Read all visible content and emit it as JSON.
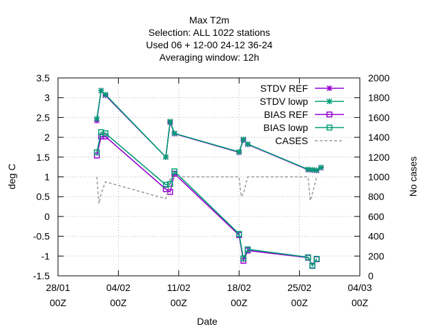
{
  "chart_data": {
    "type": "line",
    "title_lines": [
      "Max T2m",
      "Selection: ALL   1022 stations",
      "Used  06  + 12-00 24-12 36-24",
      "Averaging window: 12h"
    ],
    "xlabel": "Date",
    "ylabel": "deg C",
    "y2label": "No cases",
    "x_ticks": [
      {
        "x": 0,
        "line1": "28/01",
        "line2": "00Z"
      },
      {
        "x": 7,
        "line1": "04/02",
        "line2": "00Z"
      },
      {
        "x": 14,
        "line1": "11/02",
        "line2": "00Z"
      },
      {
        "x": 21,
        "line1": "18/02",
        "line2": "00Z"
      },
      {
        "x": 28,
        "line1": "25/02",
        "line2": "00Z"
      },
      {
        "x": 35,
        "line1": "04/03",
        "line2": "00Z"
      }
    ],
    "y_ticks": [
      "3.5",
      "3",
      "2.5",
      "2",
      "1.5",
      "1",
      "0.5",
      "0",
      "-0.5",
      "-1",
      "-1.5"
    ],
    "y2_ticks": [
      "2000",
      "1800",
      "1600",
      "1400",
      "1200",
      "1000",
      "800",
      "600",
      "400",
      "200",
      "0"
    ],
    "xlim": [
      0,
      35
    ],
    "ylim": [
      -1.5,
      3.5
    ],
    "y2lim": [
      0,
      2000
    ],
    "grid": true,
    "legend_position": "top-right",
    "series": [
      {
        "name": "STDV REF",
        "color": "#9400d3",
        "marker": "star",
        "axis": "y",
        "dash": false,
        "x": [
          4.5,
          5,
          5.5,
          12.5,
          13,
          13.5,
          21,
          21.5,
          22,
          29,
          29.5,
          30,
          30.5
        ],
        "y": [
          2.42,
          3.18,
          3.06,
          1.5,
          2.38,
          2.09,
          1.62,
          1.93,
          1.82,
          1.18,
          1.17,
          1.16,
          1.23
        ]
      },
      {
        "name": "STDV lowp",
        "color": "#009e73",
        "marker": "star",
        "axis": "y",
        "dash": false,
        "x": [
          4.5,
          5,
          5.5,
          12.5,
          13,
          13.5,
          21,
          21.5,
          22,
          29,
          29.5,
          30,
          30.5
        ],
        "y": [
          2.47,
          3.18,
          3.08,
          1.5,
          2.4,
          2.1,
          1.63,
          1.95,
          1.83,
          1.19,
          1.18,
          1.17,
          1.24
        ]
      },
      {
        "name": "BIAS REF",
        "color": "#9400d3",
        "marker": "square",
        "axis": "y",
        "dash": false,
        "x": [
          4.5,
          5,
          5.5,
          12.5,
          13,
          13.5,
          21,
          21.5,
          22,
          29,
          29.5,
          30
        ],
        "y": [
          1.54,
          2.02,
          2.02,
          0.69,
          0.62,
          1.08,
          -0.47,
          -1.12,
          -0.86,
          -1.04,
          -1.24,
          -1.08
        ]
      },
      {
        "name": "BIAS lowp",
        "color": "#009e73",
        "marker": "square",
        "axis": "y",
        "dash": false,
        "x": [
          4.5,
          5,
          5.5,
          12.5,
          13,
          13.5,
          21,
          21.5,
          22,
          29,
          29.5,
          30
        ],
        "y": [
          1.62,
          2.13,
          2.1,
          0.8,
          0.82,
          1.14,
          -0.44,
          -1.06,
          -0.83,
          -1.03,
          -1.25,
          -1.07
        ]
      },
      {
        "name": "CASES",
        "color": "#999999",
        "marker": "none",
        "axis": "y2",
        "dash": true,
        "x": [
          4.5,
          4.75,
          5,
          5.5,
          12.5,
          12.75,
          13,
          13.5,
          21,
          21.25,
          21.5,
          22,
          29,
          29.25,
          29.5,
          30
        ],
        "y": [
          1000,
          730,
          830,
          950,
          780,
          850,
          980,
          1000,
          1000,
          800,
          830,
          1000,
          1000,
          760,
          830,
          1000
        ]
      }
    ]
  }
}
